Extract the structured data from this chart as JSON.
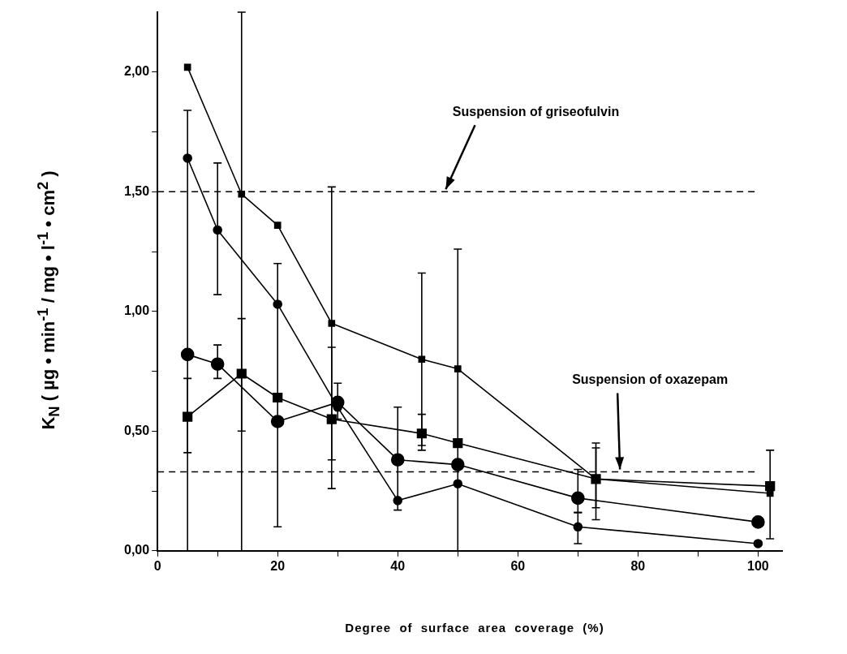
{
  "chart_data": {
    "type": "line",
    "xlabel": "Degree of surface area coverage (%)",
    "ylabel": "K$_{N}$ ( µg • min$^{-1}$ / mg • l$^{-1}$ • cm$^{2}$ )",
    "xlim": [
      0,
      104
    ],
    "ylim": [
      0,
      2.25
    ],
    "xticks": [
      0,
      {
        "value": 10,
        "label": null
      },
      20,
      {
        "value": 30,
        "label": null
      },
      40,
      {
        "value": 50,
        "label": null
      },
      60,
      {
        "value": 70,
        "label": null
      },
      80,
      {
        "value": 90,
        "label": null
      },
      100
    ],
    "yticks": [
      {
        "value": 0,
        "label": "0,00"
      },
      {
        "value": 0.25,
        "label": null
      },
      {
        "value": 0.5,
        "label": "0,50"
      },
      {
        "value": 0.75,
        "label": null
      },
      {
        "value": 1,
        "label": "1,00"
      },
      {
        "value": 1.25,
        "label": null
      },
      {
        "value": 1.5,
        "label": "1,50"
      },
      {
        "value": 1.75,
        "label": null
      },
      {
        "value": 2,
        "label": "2,00"
      }
    ],
    "grid": false,
    "legend": false,
    "line_style": "solid",
    "series": [
      {
        "color": "#000000",
        "marker": "square",
        "x": [
          5,
          14,
          20,
          29,
          44,
          50,
          73,
          102
        ],
        "values": [
          2.02,
          1.49,
          1.36,
          0.95,
          0.8,
          0.76,
          0.3,
          0.24
        ],
        "errors": [
          null,
          [
            0,
            2.25
          ],
          null,
          [
            0.38,
            1.52
          ],
          [
            0.44,
            1.16
          ],
          [
            0,
            1.26
          ],
          [
            0.13,
            0.45
          ],
          [
            0.05,
            0.42
          ]
        ]
      },
      {
        "color": "#000000",
        "marker": "circle",
        "x": [
          5,
          10,
          20,
          30,
          40,
          50,
          70,
          100
        ],
        "values": [
          1.64,
          1.34,
          1.03,
          0.6,
          0.21,
          0.28,
          0.1,
          0.03
        ],
        "errors": [
          [
            0,
            1.84
          ],
          [
            1.07,
            1.62
          ],
          [
            0.1,
            1.2
          ],
          null,
          null,
          null,
          [
            0.03,
            0.16
          ],
          null
        ]
      },
      {
        "color": "#000000",
        "marker": "circle",
        "x": [
          5,
          10,
          20,
          30,
          40,
          50,
          70,
          100
        ],
        "values": [
          0.82,
          0.78,
          0.54,
          0.62,
          0.38,
          0.36,
          0.22,
          0.12
        ],
        "errors": [
          null,
          [
            0.72,
            0.86
          ],
          null,
          [
            0.55,
            0.7
          ],
          [
            0.17,
            0.6
          ],
          null,
          [
            0.16,
            0.34
          ],
          null
        ]
      },
      {
        "color": "#000000",
        "marker": "square",
        "x": [
          5,
          14,
          20,
          29,
          44,
          50,
          73,
          102
        ],
        "values": [
          0.56,
          0.74,
          0.64,
          0.55,
          0.49,
          0.45,
          0.3,
          0.27
        ],
        "errors": [
          [
            0.41,
            0.72
          ],
          [
            0.5,
            0.97
          ],
          null,
          [
            0.26,
            0.85
          ],
          [
            0.42,
            0.57
          ],
          null,
          [
            0.18,
            0.43
          ],
          null
        ]
      }
    ],
    "ref_lines": [
      {
        "axis": "y",
        "value": 1.5,
        "label": "Suspension of griseofulvin",
        "line_style": "dashed",
        "color": "#000000"
      },
      {
        "axis": "y",
        "value": 0.33,
        "label": "Suspension of oxazepam",
        "line_style": "dashed",
        "color": "#000000"
      }
    ]
  }
}
